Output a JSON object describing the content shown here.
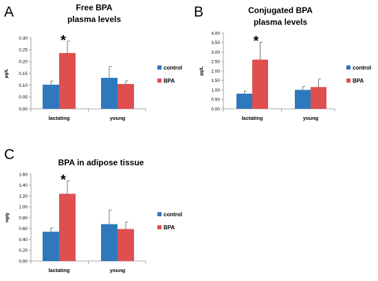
{
  "colors": {
    "control": "#2e78bd",
    "bpa": "#df4f4f",
    "axis": "#8a8a8a"
  },
  "chart_data": [
    {
      "type": "bar",
      "panel": "A",
      "title_lines": [
        "Free BPA",
        "plasma levels"
      ],
      "ylabel": "µg/L",
      "categories": [
        "lactating",
        "young"
      ],
      "series": [
        {
          "name": "control",
          "values": [
            0.102,
            0.131
          ],
          "errors": [
            0.015,
            0.048
          ]
        },
        {
          "name": "BPA",
          "values": [
            0.236,
            0.105
          ],
          "errors": [
            0.05,
            0.013
          ]
        }
      ],
      "ylim": [
        0,
        0.3
      ],
      "yticks": [
        "0.00",
        "0.05",
        "0.10",
        "0.15",
        "0.20",
        "0.25",
        "0.30"
      ],
      "annotation": {
        "text": "*",
        "category": "lactating",
        "series": "BPA"
      },
      "legend_position": "right",
      "grid": false
    },
    {
      "type": "bar",
      "panel": "B",
      "title_lines": [
        "Conjugated BPA",
        "plasma levels"
      ],
      "ylabel": "µg/L",
      "categories": [
        "lactating",
        "young"
      ],
      "series": [
        {
          "name": "control",
          "values": [
            0.8,
            1.0
          ],
          "errors": [
            0.14,
            0.18
          ]
        },
        {
          "name": "BPA",
          "values": [
            2.6,
            1.15
          ],
          "errors": [
            0.92,
            0.42
          ]
        }
      ],
      "ylim": [
        0,
        4.0
      ],
      "yticks": [
        "0.00",
        "0.50",
        "1.00",
        "1.50",
        "2.00",
        "2.50",
        "3.00",
        "3.50",
        "4.00"
      ],
      "annotation": {
        "text": "*",
        "category": "lactating",
        "series": "BPA"
      },
      "legend_position": "right",
      "grid": false
    },
    {
      "type": "bar",
      "panel": "C",
      "title_lines": [
        "BPA in adipose tissue"
      ],
      "ylabel": "ng/g",
      "categories": [
        "lactating",
        "young"
      ],
      "series": [
        {
          "name": "control",
          "values": [
            0.54,
            0.68
          ],
          "errors": [
            0.07,
            0.26
          ]
        },
        {
          "name": "BPA",
          "values": [
            1.24,
            0.59
          ],
          "errors": [
            0.24,
            0.13
          ]
        }
      ],
      "ylim": [
        0,
        1.6
      ],
      "yticks": [
        "0.00",
        "0.20",
        "0.40",
        "0.60",
        "0.80",
        "1.00",
        "1.20",
        "1.40",
        "1.60"
      ],
      "annotation": {
        "text": "*",
        "category": "lactating",
        "series": "BPA"
      },
      "legend_position": "right",
      "grid": false
    }
  ]
}
